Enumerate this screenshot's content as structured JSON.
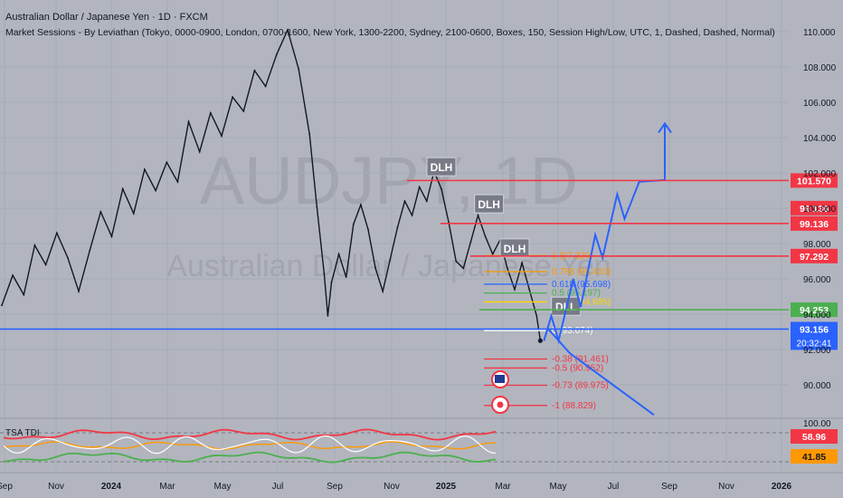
{
  "header": {
    "title": "Australian Dollar / Japanese Yen · 1D · FXCM",
    "subtitle": "Market Sessions - By Leviathan (Tokyo, 0000-0900, London, 0700-1600, New York, 1300-2200, Sydney, 2100-0600, Boxes, 150, Session High/Low, UTC, 1, Dashed, Dashed, Normal)"
  },
  "watermark": {
    "symbol": "AUDJPY, 1D",
    "name": "Australian Dollar / Japanese Yen"
  },
  "indicator": {
    "title": "TSA TDI",
    "scale_top": "100.00",
    "badges": [
      {
        "text": "58.96",
        "color": "#f23645",
        "value": 58.96
      },
      {
        "text": "41.85",
        "color": "#ff9800",
        "value": 41.85
      }
    ]
  },
  "chart_data": {
    "type": "line",
    "y_scale": {
      "min": 88,
      "max": 111
    },
    "y_ticks": [
      "110.000",
      "108.000",
      "106.000",
      "104.000",
      "102.000",
      "100.000",
      "98.000",
      "96.000",
      "94.000",
      "92.000",
      "90.000"
    ],
    "x_ticks": [
      "Sep",
      "Nov",
      "2024",
      "Mar",
      "May",
      "Jul",
      "Sep",
      "Nov",
      "2025",
      "Mar",
      "May",
      "Jul",
      "Sep",
      "Nov",
      "2026"
    ],
    "price_path": [
      [
        0,
        94.5
      ],
      [
        3,
        96.2
      ],
      [
        6,
        95.1
      ],
      [
        9,
        97.9
      ],
      [
        12,
        96.8
      ],
      [
        15,
        98.6
      ],
      [
        18,
        97.2
      ],
      [
        21,
        95.3
      ],
      [
        24,
        97.6
      ],
      [
        27,
        99.8
      ],
      [
        30,
        98.4
      ],
      [
        33,
        101.1
      ],
      [
        36,
        99.7
      ],
      [
        39,
        102.2
      ],
      [
        42,
        101.0
      ],
      [
        45,
        102.6
      ],
      [
        48,
        101.5
      ],
      [
        51,
        104.9
      ],
      [
        54,
        103.2
      ],
      [
        57,
        105.4
      ],
      [
        60,
        104.1
      ],
      [
        63,
        106.3
      ],
      [
        66,
        105.5
      ],
      [
        69,
        107.8
      ],
      [
        72,
        106.9
      ],
      [
        75,
        108.7
      ],
      [
        78,
        110.1
      ],
      [
        81,
        107.9
      ],
      [
        84,
        104.2
      ],
      [
        86,
        100.1
      ],
      [
        88,
        96.3
      ],
      [
        89,
        93.9
      ],
      [
        90,
        95.8
      ],
      [
        92,
        97.4
      ],
      [
        94,
        96.1
      ],
      [
        96,
        99.1
      ],
      [
        98,
        100.2
      ],
      [
        100,
        98.8
      ],
      [
        102,
        96.6
      ],
      [
        104,
        95.3
      ],
      [
        106,
        97.1
      ],
      [
        108,
        98.9
      ],
      [
        110,
        100.4
      ],
      [
        112,
        99.6
      ],
      [
        114,
        101.2
      ],
      [
        116,
        100.4
      ],
      [
        118,
        102.1
      ],
      [
        120,
        101.1
      ],
      [
        122,
        99.2
      ],
      [
        124,
        97.0
      ],
      [
        126,
        96.6
      ],
      [
        128,
        98.1
      ],
      [
        130,
        99.6
      ],
      [
        132,
        98.4
      ],
      [
        134,
        97.4
      ],
      [
        136,
        98.2
      ],
      [
        138,
        96.6
      ],
      [
        140,
        95.4
      ],
      [
        142,
        96.9
      ],
      [
        144,
        95.4
      ],
      [
        146,
        93.9
      ],
      [
        147,
        92.5
      ]
    ],
    "projection": [
      [
        148,
        92.5
      ],
      [
        150,
        93.9
      ],
      [
        152,
        92.5
      ],
      [
        156,
        96.0
      ],
      [
        158,
        94.4
      ],
      [
        162,
        98.5
      ],
      [
        164,
        97.2
      ],
      [
        168,
        100.8
      ],
      [
        170,
        99.4
      ],
      [
        174,
        101.5
      ],
      [
        181,
        101.6
      ],
      [
        181,
        104.8
      ]
    ],
    "bear_projection": [
      [
        149,
        93.2
      ],
      [
        155,
        91.8
      ],
      [
        178,
        88.3
      ]
    ],
    "levels": [
      {
        "price": 101.57,
        "label": "101.570",
        "color": "#f23645"
      },
      {
        "price": 99.136,
        "label": "99.136",
        "color": "#f23645"
      },
      {
        "price": 97.292,
        "label": "97.292",
        "color": "#f23645"
      },
      {
        "price": 94.253,
        "label": "94.253",
        "color": "#4caf50"
      },
      {
        "price": 93.156,
        "label": "93.156",
        "color": "#2962ff"
      }
    ],
    "time_remaining": "20:32:41",
    "labels": [
      {
        "text": "DLH",
        "price": 102.3,
        "x": 120
      },
      {
        "text": "DLH",
        "price": 100.2,
        "x": 133
      },
      {
        "text": "DLH",
        "price": 97.7,
        "x": 140
      },
      {
        "text": "DLL",
        "price": 94.4,
        "x": 154
      }
    ],
    "fib_levels": [
      {
        "text": "1 (97.320)",
        "price": 97.32,
        "color": "#ff9800"
      },
      {
        "text": "0.786 (96.410)",
        "price": 96.41,
        "color": "#ff9800"
      },
      {
        "text": "0.618 (95.698)",
        "price": 95.698,
        "color": "#2962ff"
      },
      {
        "text": "0.5 (95.197)",
        "price": 95.197,
        "color": "#4caf50"
      },
      {
        "text": "0.382 (94.695)",
        "price": 94.695,
        "color": "#ffd600"
      },
      {
        "text": "0 (93.074)",
        "price": 93.074,
        "color": "#ffffff"
      },
      {
        "text": "-0.38 (91.461)",
        "price": 91.461,
        "color": "#f23645"
      },
      {
        "text": "-0.5 (90.952)",
        "price": 90.952,
        "color": "#f23645"
      },
      {
        "text": "-0.73 (89.975)",
        "price": 89.975,
        "color": "#f23645"
      },
      {
        "text": "-1 (88.829)",
        "price": 88.829,
        "color": "#f23645"
      }
    ],
    "colors": {
      "line": "#131722",
      "projection": "#2962ff"
    }
  }
}
